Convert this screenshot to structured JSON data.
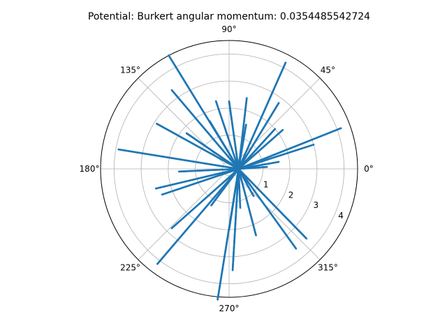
{
  "chart_data": {
    "type": "line",
    "projection": "polar",
    "title": "Potential: Burkert angular momentum: 0.0354485542724",
    "r_ticks": [
      "1",
      "2",
      "3",
      "4"
    ],
    "r_tick_values": [
      1,
      2,
      3,
      4
    ],
    "r_max": 4.5,
    "r_origin_offset": 0.25,
    "theta_ticks": [
      "0°",
      "45°",
      "90°",
      "135°",
      "180°",
      "225°",
      "270°",
      "315°"
    ],
    "theta_tick_degrees": [
      0,
      45,
      90,
      135,
      180,
      225,
      270,
      315
    ],
    "grid": true,
    "series": [
      {
        "color": "#1f77b4",
        "theta_deg": [
          0,
          20,
          0,
          170,
          0,
          62,
          0,
          292,
          0,
          118,
          0,
          16,
          0,
          195,
          0,
          233,
          0,
          76,
          0,
          310,
          0,
          148,
          0,
          8,
          0,
          265,
          0,
          101,
          0,
          318,
          0,
          126,
          0,
          201,
          0,
          36,
          0,
          272,
          0,
          112,
          0,
          53,
          0,
          226,
          0,
          312,
          0,
          3,
          0,
          90,
          0,
          183,
          0,
          244,
          0,
          69,
          0,
          270,
          0,
          140,
          0,
          41,
          0,
          286
        ],
        "r": [
          0.1,
          4.15,
          0.1,
          3.9,
          0.1,
          4.2,
          0.1,
          2.4,
          0.1,
          4.5,
          0.1,
          3.0,
          0.1,
          2.55,
          0.1,
          4.15,
          0.1,
          2.45,
          0.1,
          3.6,
          0.1,
          2.9,
          0.1,
          1.6,
          0.1,
          4.6,
          0.1,
          2.3,
          0.1,
          3.6,
          0.1,
          3.35,
          0.1,
          2.4,
          0.1,
          2.2,
          0.1,
          3.5,
          0.1,
          1.65,
          0.1,
          2.8,
          0.1,
          2.8,
          0.1,
          1.1,
          0.1,
          1.15,
          0.1,
          2.25,
          0.1,
          1.6,
          0.1,
          1.25,
          0.1,
          1.5,
          0.1,
          2.0,
          0.1,
          1.8,
          0.1,
          2.0,
          0.1,
          1.25
        ]
      }
    ]
  }
}
